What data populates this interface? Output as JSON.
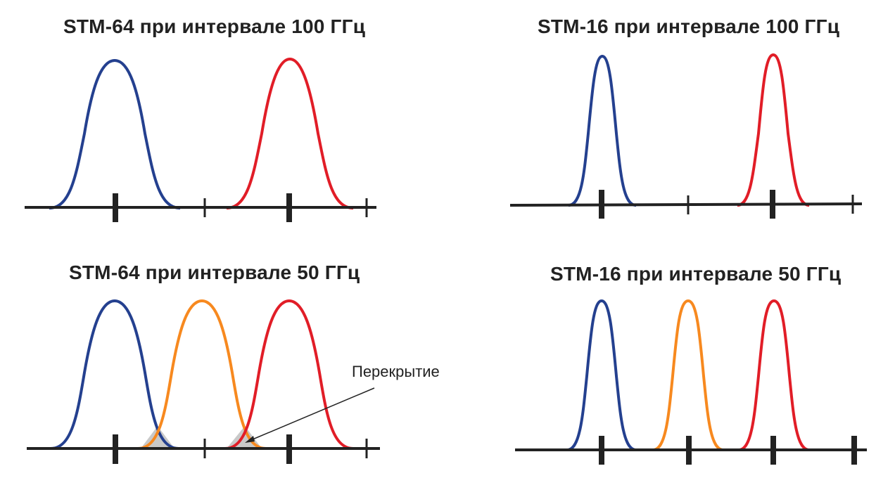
{
  "panels": {
    "top_left": {
      "title": "STM-64 при интервале 100 ГГц"
    },
    "top_right": {
      "title": "STM-16 при интервале 100 ГГц"
    },
    "bottom_left": {
      "title": "STM-64 при интервале 50 ГГц"
    },
    "bottom_right": {
      "title": "STM-16 при интервале 50 ГГц"
    }
  },
  "annotation": {
    "label": "Перекрытие"
  },
  "colors": {
    "channel_blue": "#24408f",
    "channel_orange": "#f7891f",
    "channel_red": "#e11d27",
    "axis": "#222222",
    "overlap_fill": "#c9c9c9"
  }
}
